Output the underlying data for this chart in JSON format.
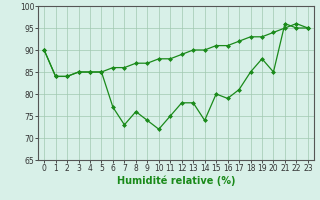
{
  "x": [
    0,
    1,
    2,
    3,
    4,
    5,
    6,
    7,
    8,
    9,
    10,
    11,
    12,
    13,
    14,
    15,
    16,
    17,
    18,
    19,
    20,
    21,
    22,
    23
  ],
  "line1": [
    90,
    84,
    84,
    85,
    85,
    85,
    77,
    73,
    76,
    74,
    72,
    75,
    78,
    78,
    74,
    80,
    79,
    81,
    85,
    88,
    85,
    96,
    95,
    95
  ],
  "line2": [
    90,
    84,
    84,
    85,
    85,
    85,
    86,
    86,
    87,
    87,
    88,
    88,
    89,
    90,
    90,
    91,
    91,
    92,
    93,
    93,
    94,
    95,
    96,
    95
  ],
  "line_color": "#1a8a1a",
  "bg_color": "#d8f0e8",
  "grid_color": "#a0c8b0",
  "xlabel": "Humidité relative (%)",
  "ylim": [
    65,
    100
  ],
  "xlim": [
    -0.5,
    23.5
  ],
  "yticks": [
    65,
    70,
    75,
    80,
    85,
    90,
    95,
    100
  ],
  "xticks": [
    0,
    1,
    2,
    3,
    4,
    5,
    6,
    7,
    8,
    9,
    10,
    11,
    12,
    13,
    14,
    15,
    16,
    17,
    18,
    19,
    20,
    21,
    22,
    23
  ],
  "xlabel_fontsize": 7,
  "tick_fontsize": 5.5
}
